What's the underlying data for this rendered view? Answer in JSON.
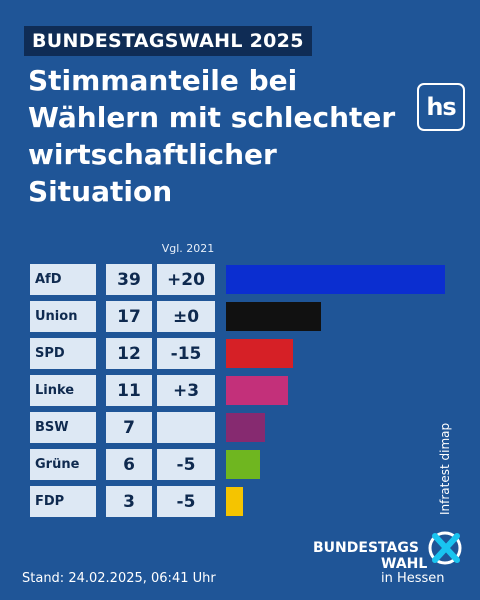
{
  "header": {
    "topic": "BUNDESTAGSWAHL 2025",
    "title": "Stimmanteile bei Wählern mit schlechter wirtschaftlicher Situation",
    "logo": "hs"
  },
  "chart_data": {
    "type": "bar",
    "orientation": "horizontal",
    "title": "Stimmanteile bei Wählern mit schlechter wirtschaftlicher Situation",
    "comparison_label": "Vgl. 2021",
    "categories": [
      "AfD",
      "Union",
      "SPD",
      "Linke",
      "BSW",
      "Grüne",
      "FDP"
    ],
    "values": [
      39,
      17,
      12,
      11,
      7,
      6,
      3
    ],
    "diffs": [
      "+20",
      "±0",
      "-15",
      "+3",
      "",
      "-5",
      "-5"
    ],
    "colors": [
      "#0b2ed0",
      "#111111",
      "#d62026",
      "#c3307a",
      "#862a70",
      "#6fb620",
      "#f5c400"
    ],
    "xlim": [
      0,
      39
    ]
  },
  "source": "Infratest dimap",
  "brand": {
    "line1": "BUNDESTAGS",
    "line2": "WAHL",
    "line3": "in Hessen",
    "accent": "#19c4f0"
  },
  "footer": {
    "stand": "Stand: 24.02.2025, 06:41 Uhr"
  }
}
